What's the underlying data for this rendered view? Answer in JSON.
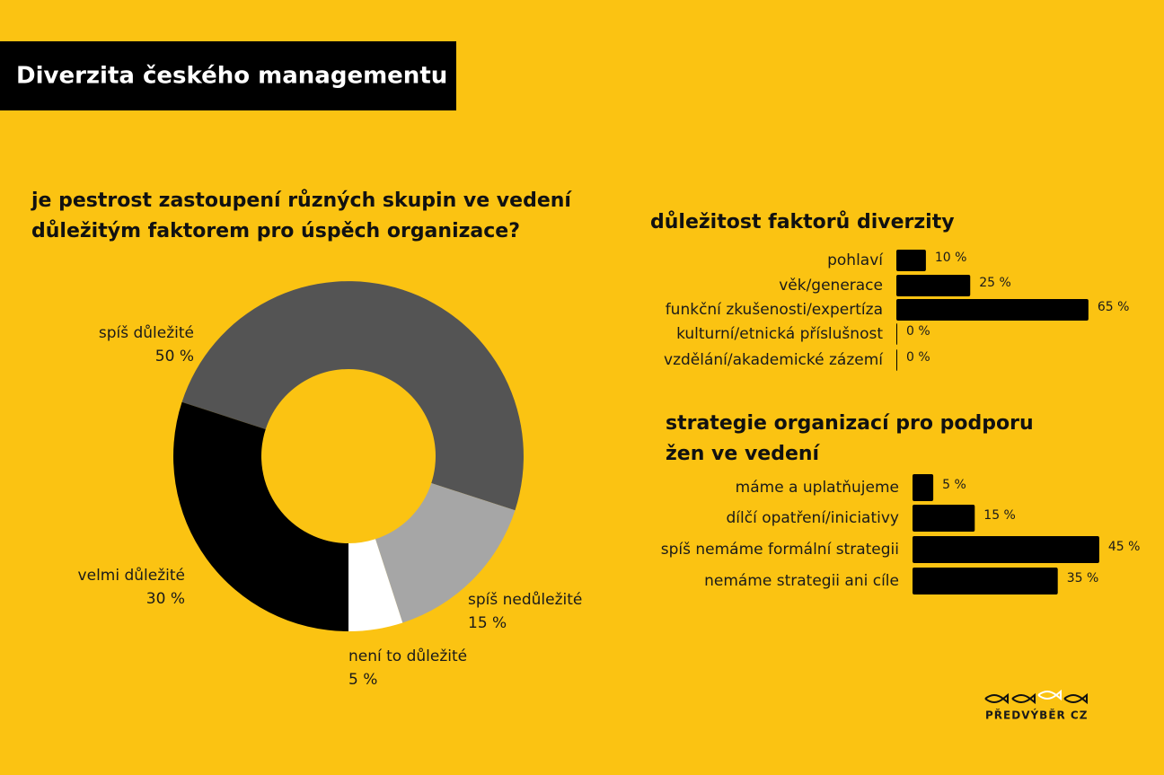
{
  "header": {
    "title": "Diverzita českého managementu"
  },
  "chart_data": [
    {
      "type": "pie",
      "title": "je pestrost zastoupení různých skupin ve vedení důležitým faktorem pro úspěch organizace?",
      "categories": [
        "spíš důležité",
        "spíš nedůležité",
        "není to důležité",
        "velmi důležité"
      ],
      "values": [
        50,
        15,
        5,
        30
      ],
      "value_labels": [
        "50 %",
        "15 %",
        "5 %",
        "30 %"
      ],
      "colors": [
        "#545454",
        "#a6a6a6",
        "#ffffff",
        "#000000"
      ]
    },
    {
      "type": "bar",
      "title": "důležitost faktorů diverzity",
      "categories": [
        "pohlaví",
        "věk/generace",
        "funkční zkušenosti/expertíza",
        "kulturní/etnická příslušnost",
        "vzdělání/akademické zázemí"
      ],
      "values": [
        10,
        25,
        65,
        0,
        0
      ],
      "value_labels": [
        "10 %",
        "25 %",
        "65 %",
        "0 %",
        "0 %"
      ],
      "color": "#000000"
    },
    {
      "type": "bar",
      "title": "strategie organizací pro podporu žen ve vedení",
      "categories": [
        "máme a uplatňujeme",
        "dílčí opatření/iniciativy",
        "spíš nemáme formální strategii",
        "nemáme strategii ani cíle"
      ],
      "values": [
        5,
        15,
        45,
        35
      ],
      "value_labels": [
        "5 %",
        "15 %",
        "45 %",
        "35 %"
      ],
      "color": "#000000"
    }
  ],
  "logo": {
    "text": "PŘEDVÝBĚR CZ"
  }
}
